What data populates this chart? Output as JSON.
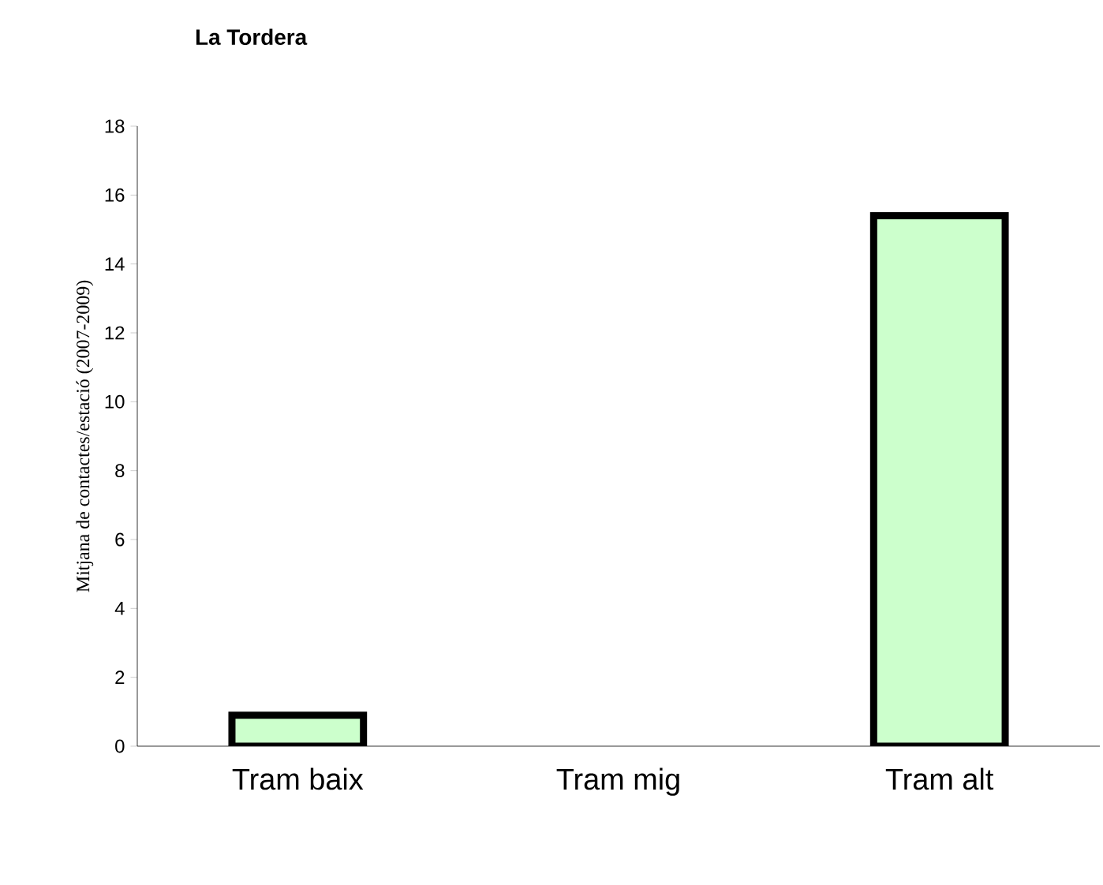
{
  "chart_data": {
    "type": "bar",
    "title": "La Tordera",
    "ylabel": "Mitjana de contactes/estació (2007-2009)",
    "categories": [
      "Tram baix",
      "Tram mig",
      "Tram alt"
    ],
    "values": [
      0.9,
      0,
      15.4
    ],
    "color": "#ccffcc",
    "ylim": [
      0,
      18
    ],
    "yticks": [
      0,
      2,
      4,
      6,
      8,
      10,
      12,
      14,
      16,
      18
    ]
  }
}
